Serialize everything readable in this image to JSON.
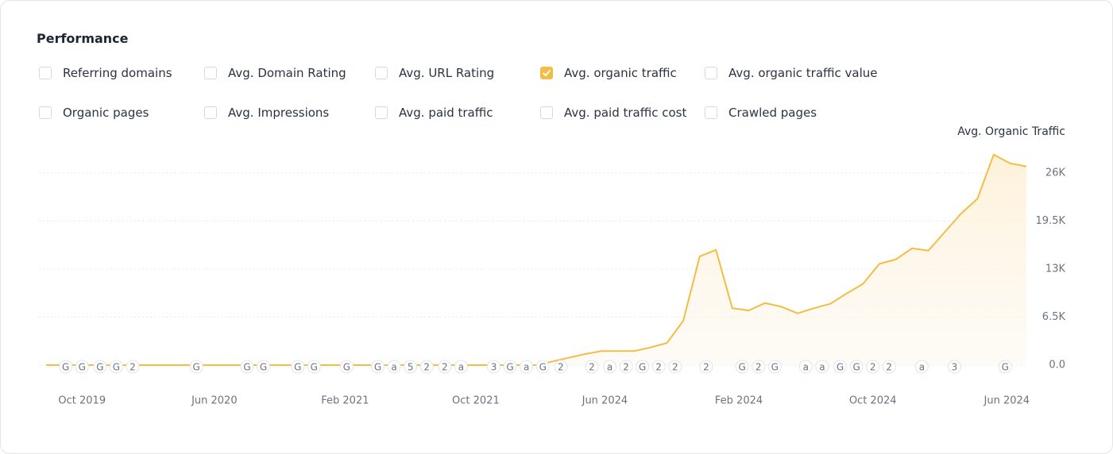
{
  "header": {
    "title": "Performance"
  },
  "filters": [
    {
      "label": "Referring domains",
      "checked": false
    },
    {
      "label": "Avg. Domain Rating",
      "checked": false
    },
    {
      "label": "Avg. URL Rating",
      "checked": false
    },
    {
      "label": "Avg. organic traffic",
      "checked": true
    },
    {
      "label": "Avg. organic traffic value",
      "checked": false
    },
    {
      "label": "Organic pages",
      "checked": false
    },
    {
      "label": "Avg. Impressions",
      "checked": false
    },
    {
      "label": "Avg. paid traffic",
      "checked": false
    },
    {
      "label": "Avg. paid traffic cost",
      "checked": false
    },
    {
      "label": "Crawled pages",
      "checked": false
    }
  ],
  "chart_data": {
    "type": "area",
    "y_label": "Avg. Organic Traffic",
    "color": "#f2bd42",
    "grid": true,
    "xlim": [
      0,
      60
    ],
    "ylim": [
      0,
      29000
    ],
    "yticks": [
      {
        "value": 0,
        "label": "0.0"
      },
      {
        "value": 6500,
        "label": "6.5K"
      },
      {
        "value": 13000,
        "label": "13K"
      },
      {
        "value": 19500,
        "label": "19.5K"
      },
      {
        "value": 26000,
        "label": "26K"
      }
    ],
    "xticks": [
      {
        "value": 2.2,
        "label": "Oct 2019"
      },
      {
        "value": 10.3,
        "label": "Jun 2020"
      },
      {
        "value": 18.3,
        "label": "Feb 2021"
      },
      {
        "value": 26.3,
        "label": "Oct 2021"
      },
      {
        "value": 34.2,
        "label": "Jun 2024"
      },
      {
        "value": 42.4,
        "label": "Feb 2024"
      },
      {
        "value": 50.6,
        "label": "Oct 2024"
      },
      {
        "value": 58.8,
        "label": "Jun 2024"
      }
    ],
    "x": [
      0,
      1,
      2,
      3,
      4,
      5,
      6,
      7,
      8,
      9,
      10,
      11,
      12,
      13,
      14,
      15,
      16,
      17,
      18,
      19,
      20,
      21,
      22,
      23,
      24,
      25,
      26,
      27,
      28,
      29,
      30,
      31,
      32,
      33,
      34,
      35,
      36,
      37,
      38,
      39,
      40,
      41,
      42,
      43,
      44,
      45,
      46,
      47,
      48,
      49,
      50,
      51,
      52,
      53,
      54,
      55,
      56,
      57,
      58,
      59,
      60
    ],
    "values": [
      0,
      0,
      0,
      0,
      0,
      0,
      0,
      0,
      0,
      0,
      0,
      0,
      0,
      0,
      0,
      0,
      0,
      0,
      0,
      0,
      0,
      0,
      0,
      0,
      0,
      0,
      0,
      0,
      0,
      0,
      0,
      500,
      1000,
      1500,
      1900,
      1900,
      1900,
      2400,
      3000,
      6000,
      14700,
      15600,
      7700,
      7400,
      8400,
      7900,
      7000,
      7700,
      8300,
      9700,
      11000,
      13700,
      14300,
      15800,
      15500,
      18000,
      20500,
      22500,
      28500,
      27300,
      26900
    ],
    "annotations": [
      {
        "x": 1.2,
        "label": "G"
      },
      {
        "x": 2.2,
        "label": "G"
      },
      {
        "x": 3.3,
        "label": "G"
      },
      {
        "x": 4.3,
        "label": "G"
      },
      {
        "x": 5.3,
        "label": "2"
      },
      {
        "x": 9.2,
        "label": "G"
      },
      {
        "x": 12.3,
        "label": "G"
      },
      {
        "x": 13.3,
        "label": "G"
      },
      {
        "x": 15.4,
        "label": "G"
      },
      {
        "x": 16.4,
        "label": "G"
      },
      {
        "x": 18.4,
        "label": "G"
      },
      {
        "x": 20.3,
        "label": "G"
      },
      {
        "x": 21.3,
        "label": "a"
      },
      {
        "x": 22.3,
        "label": "5"
      },
      {
        "x": 23.3,
        "label": "2"
      },
      {
        "x": 24.4,
        "label": "2"
      },
      {
        "x": 25.4,
        "label": "a"
      },
      {
        "x": 27.4,
        "label": "3"
      },
      {
        "x": 28.4,
        "label": "G"
      },
      {
        "x": 29.4,
        "label": "a"
      },
      {
        "x": 30.4,
        "label": "G"
      },
      {
        "x": 31.5,
        "label": "2"
      },
      {
        "x": 33.4,
        "label": "2"
      },
      {
        "x": 34.5,
        "label": "a"
      },
      {
        "x": 35.5,
        "label": "2"
      },
      {
        "x": 36.5,
        "label": "G"
      },
      {
        "x": 37.5,
        "label": "2"
      },
      {
        "x": 38.5,
        "label": "2"
      },
      {
        "x": 40.4,
        "label": "2"
      },
      {
        "x": 42.6,
        "label": "G"
      },
      {
        "x": 43.6,
        "label": "2"
      },
      {
        "x": 44.6,
        "label": "G"
      },
      {
        "x": 46.5,
        "label": "a"
      },
      {
        "x": 47.5,
        "label": "a"
      },
      {
        "x": 48.6,
        "label": "G"
      },
      {
        "x": 49.6,
        "label": "G"
      },
      {
        "x": 50.6,
        "label": "2"
      },
      {
        "x": 51.6,
        "label": "2"
      },
      {
        "x": 53.6,
        "label": "a"
      },
      {
        "x": 55.6,
        "label": "3"
      },
      {
        "x": 58.7,
        "label": "G"
      }
    ]
  }
}
